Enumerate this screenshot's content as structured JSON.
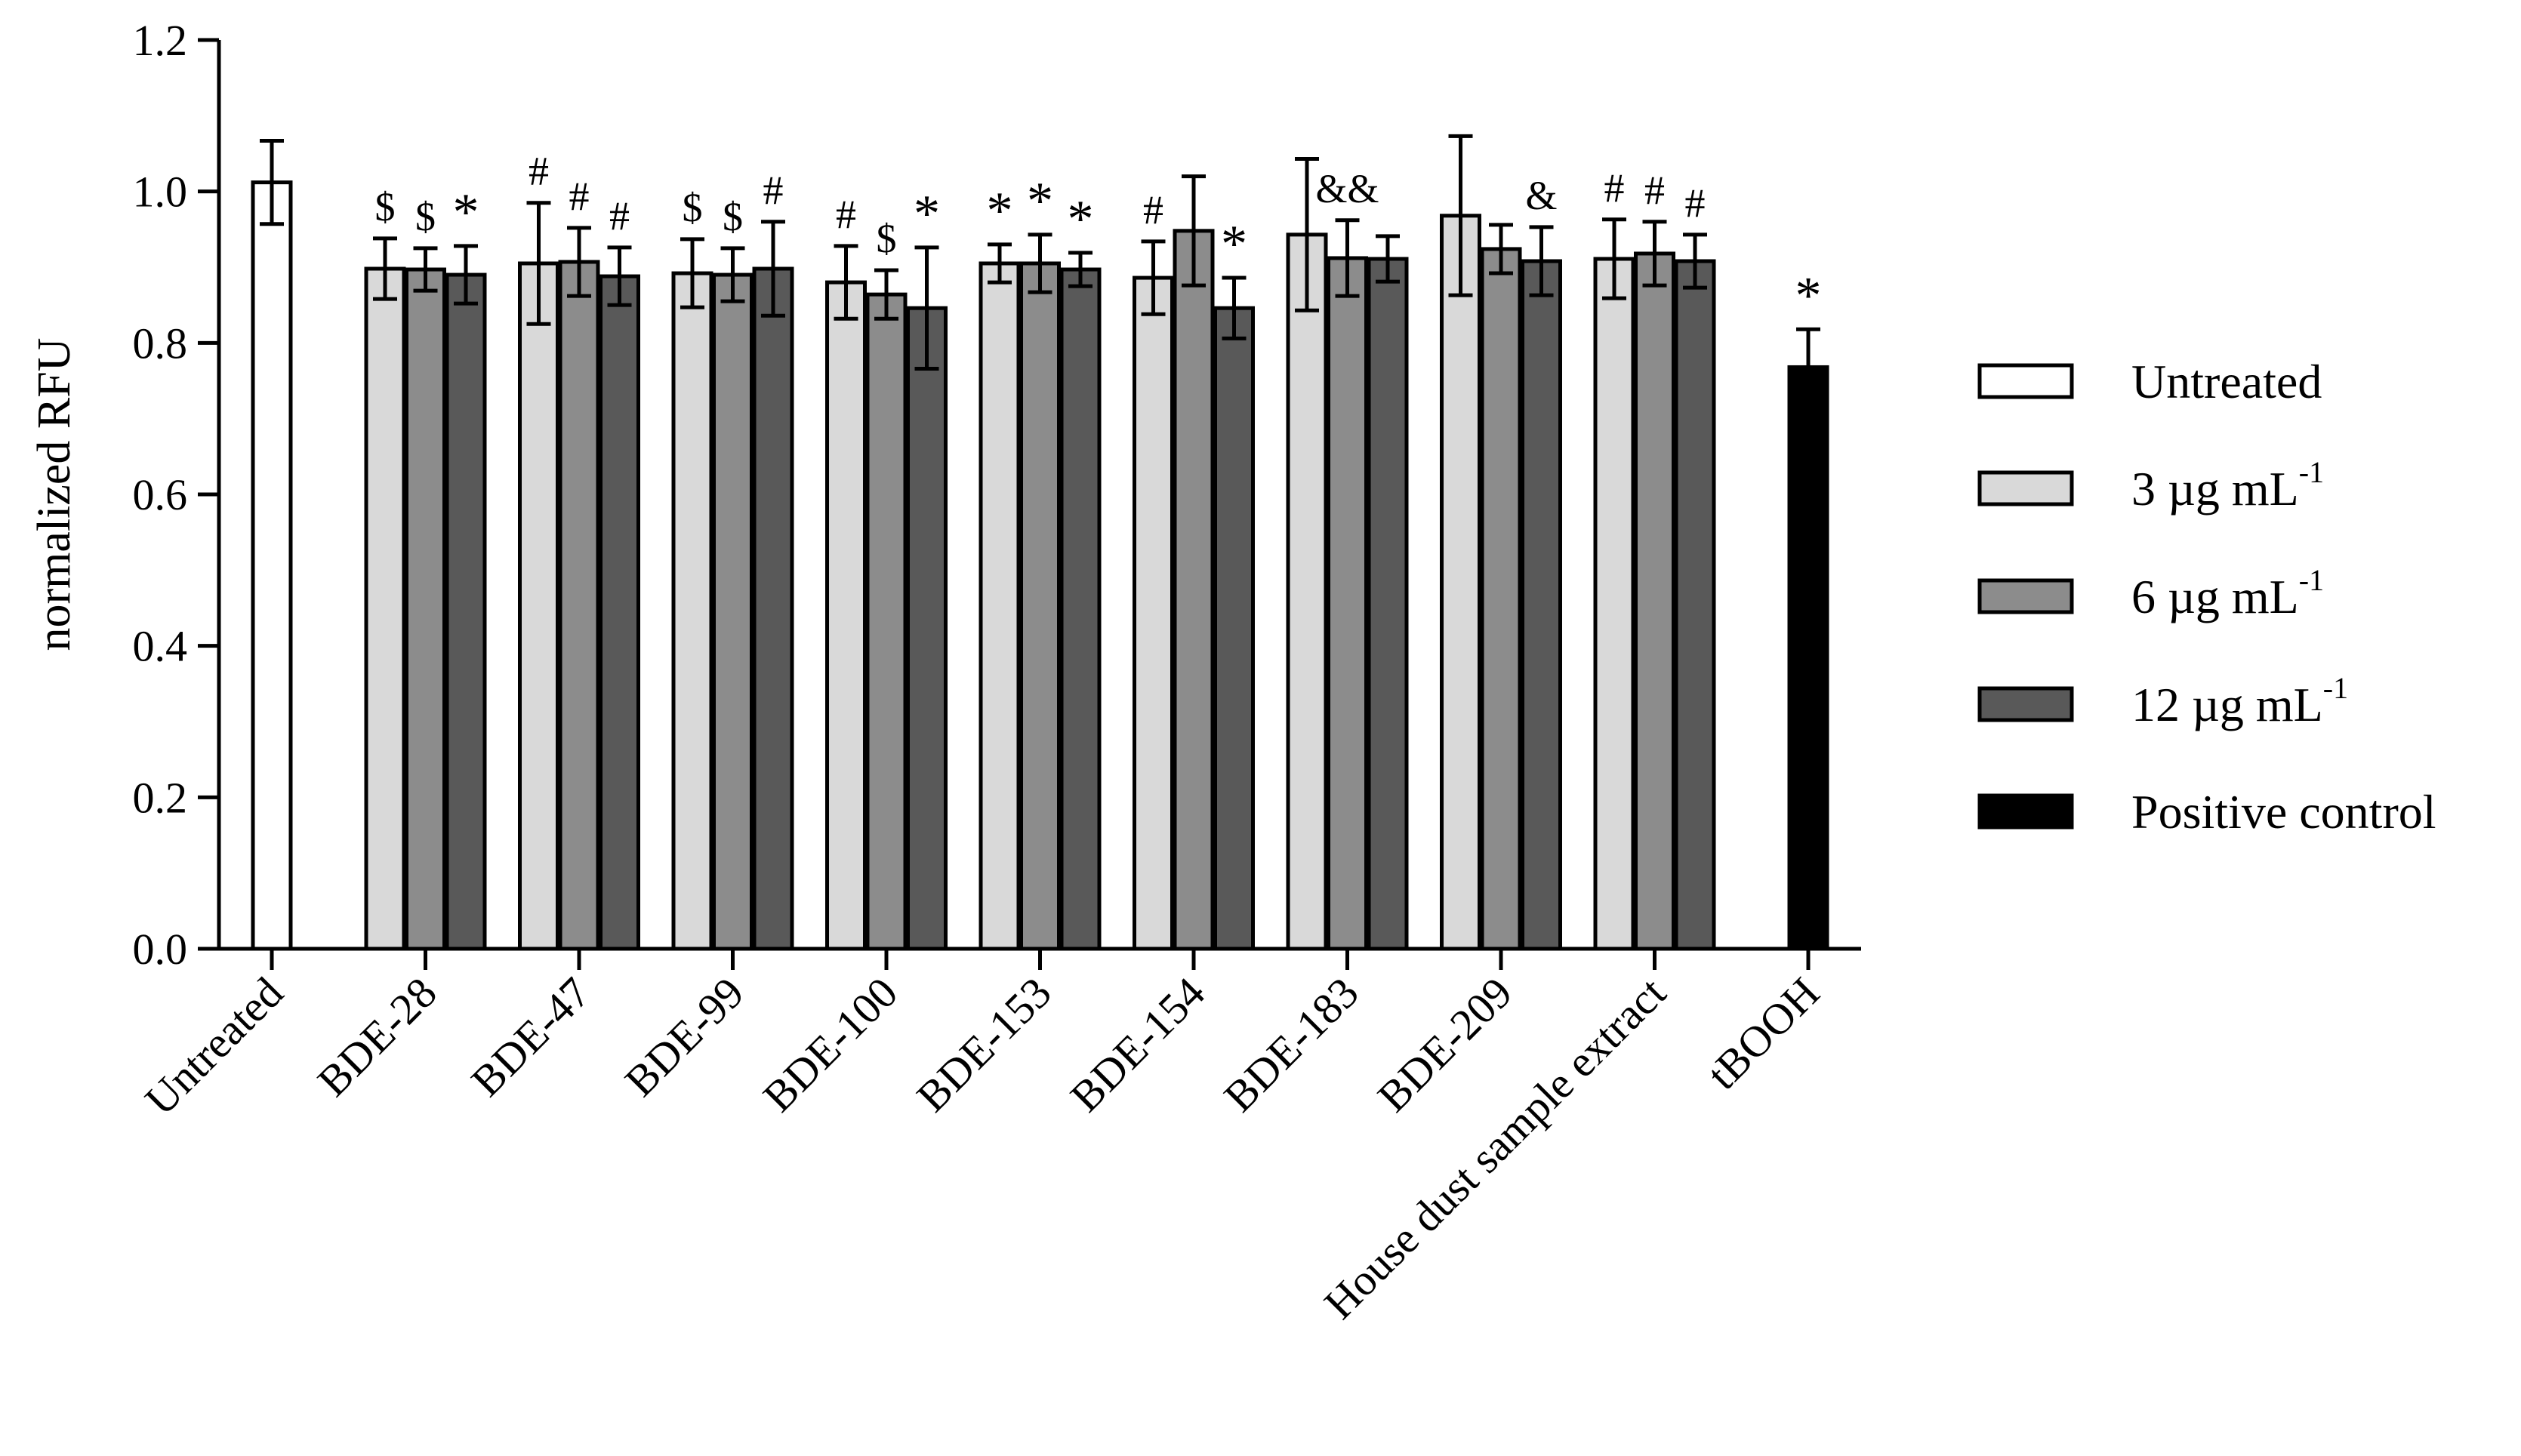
{
  "chart_data": {
    "type": "bar",
    "ylabel": "normalized RFU",
    "xlabel": "",
    "ylim": [
      0,
      1.2
    ],
    "yticks": [
      "0.0",
      "0.2",
      "0.4",
      "0.6",
      "0.8",
      "1.0",
      "1.2"
    ],
    "grid": false,
    "legend_position": "right",
    "legend": [
      {
        "key": "untreated",
        "label": "Untreated",
        "sup": "",
        "color": "#ffffff"
      },
      {
        "key": "c3",
        "label": "3 µg mL",
        "sup": "-1",
        "color": "#d9d9d9"
      },
      {
        "key": "c6",
        "label": "6 µg mL",
        "sup": "-1",
        "color": "#8c8c8c"
      },
      {
        "key": "c12",
        "label": "12 µg mL",
        "sup": "-1",
        "color": "#595959"
      },
      {
        "key": "pos",
        "label": "Positive control",
        "sup": "",
        "color": "#000000"
      }
    ],
    "groups": [
      {
        "category": "Untreated",
        "bars": [
          {
            "series": "untreated",
            "value": 1.012,
            "err": 0.055,
            "mark": ""
          }
        ]
      },
      {
        "category": "BDE-28",
        "bars": [
          {
            "series": "c3",
            "value": 0.898,
            "err": 0.04,
            "mark": "$"
          },
          {
            "series": "c6",
            "value": 0.897,
            "err": 0.028,
            "mark": "$"
          },
          {
            "series": "c12",
            "value": 0.89,
            "err": 0.038,
            "mark": "*"
          }
        ]
      },
      {
        "category": "BDE-47",
        "bars": [
          {
            "series": "c3",
            "value": 0.905,
            "err": 0.08,
            "mark": "#"
          },
          {
            "series": "c6",
            "value": 0.907,
            "err": 0.045,
            "mark": "#"
          },
          {
            "series": "c12",
            "value": 0.888,
            "err": 0.038,
            "mark": "#"
          }
        ]
      },
      {
        "category": "BDE-99",
        "bars": [
          {
            "series": "c3",
            "value": 0.892,
            "err": 0.045,
            "mark": "$"
          },
          {
            "series": "c6",
            "value": 0.89,
            "err": 0.035,
            "mark": "$"
          },
          {
            "series": "c12",
            "value": 0.898,
            "err": 0.062,
            "mark": "#"
          }
        ]
      },
      {
        "category": "BDE-100",
        "bars": [
          {
            "series": "c3",
            "value": 0.88,
            "err": 0.048,
            "mark": "#"
          },
          {
            "series": "c6",
            "value": 0.864,
            "err": 0.032,
            "mark": "$"
          },
          {
            "series": "c12",
            "value": 0.846,
            "err": 0.08,
            "mark": "*"
          }
        ]
      },
      {
        "category": "BDE-153",
        "bars": [
          {
            "series": "c3",
            "value": 0.905,
            "err": 0.025,
            "mark": "*"
          },
          {
            "series": "c6",
            "value": 0.905,
            "err": 0.038,
            "mark": "*"
          },
          {
            "series": "c12",
            "value": 0.897,
            "err": 0.022,
            "mark": "*"
          }
        ]
      },
      {
        "category": "BDE-154",
        "bars": [
          {
            "series": "c3",
            "value": 0.886,
            "err": 0.048,
            "mark": "#"
          },
          {
            "series": "c6",
            "value": 0.948,
            "err": 0.072,
            "mark": ""
          },
          {
            "series": "c12",
            "value": 0.846,
            "err": 0.04,
            "mark": "*"
          }
        ]
      },
      {
        "category": "BDE-183",
        "bars": [
          {
            "series": "c3",
            "value": 0.943,
            "err": 0.1,
            "mark": ""
          },
          {
            "series": "c6",
            "value": 0.912,
            "err": 0.05,
            "mark": "&&"
          },
          {
            "series": "c12",
            "value": 0.911,
            "err": 0.03,
            "mark": ""
          }
        ]
      },
      {
        "category": "BDE-209",
        "bars": [
          {
            "series": "c3",
            "value": 0.968,
            "err": 0.105,
            "mark": ""
          },
          {
            "series": "c6",
            "value": 0.924,
            "err": 0.032,
            "mark": ""
          },
          {
            "series": "c12",
            "value": 0.908,
            "err": 0.045,
            "mark": "&"
          }
        ]
      },
      {
        "category": "House dust sample extract",
        "bars": [
          {
            "series": "c3",
            "value": 0.911,
            "err": 0.052,
            "mark": "#"
          },
          {
            "series": "c6",
            "value": 0.918,
            "err": 0.042,
            "mark": "#"
          },
          {
            "series": "c12",
            "value": 0.908,
            "err": 0.035,
            "mark": "#"
          }
        ]
      },
      {
        "category": "tBOOH",
        "bars": [
          {
            "series": "pos",
            "value": 0.768,
            "err": 0.05,
            "mark": "*"
          }
        ]
      }
    ]
  }
}
